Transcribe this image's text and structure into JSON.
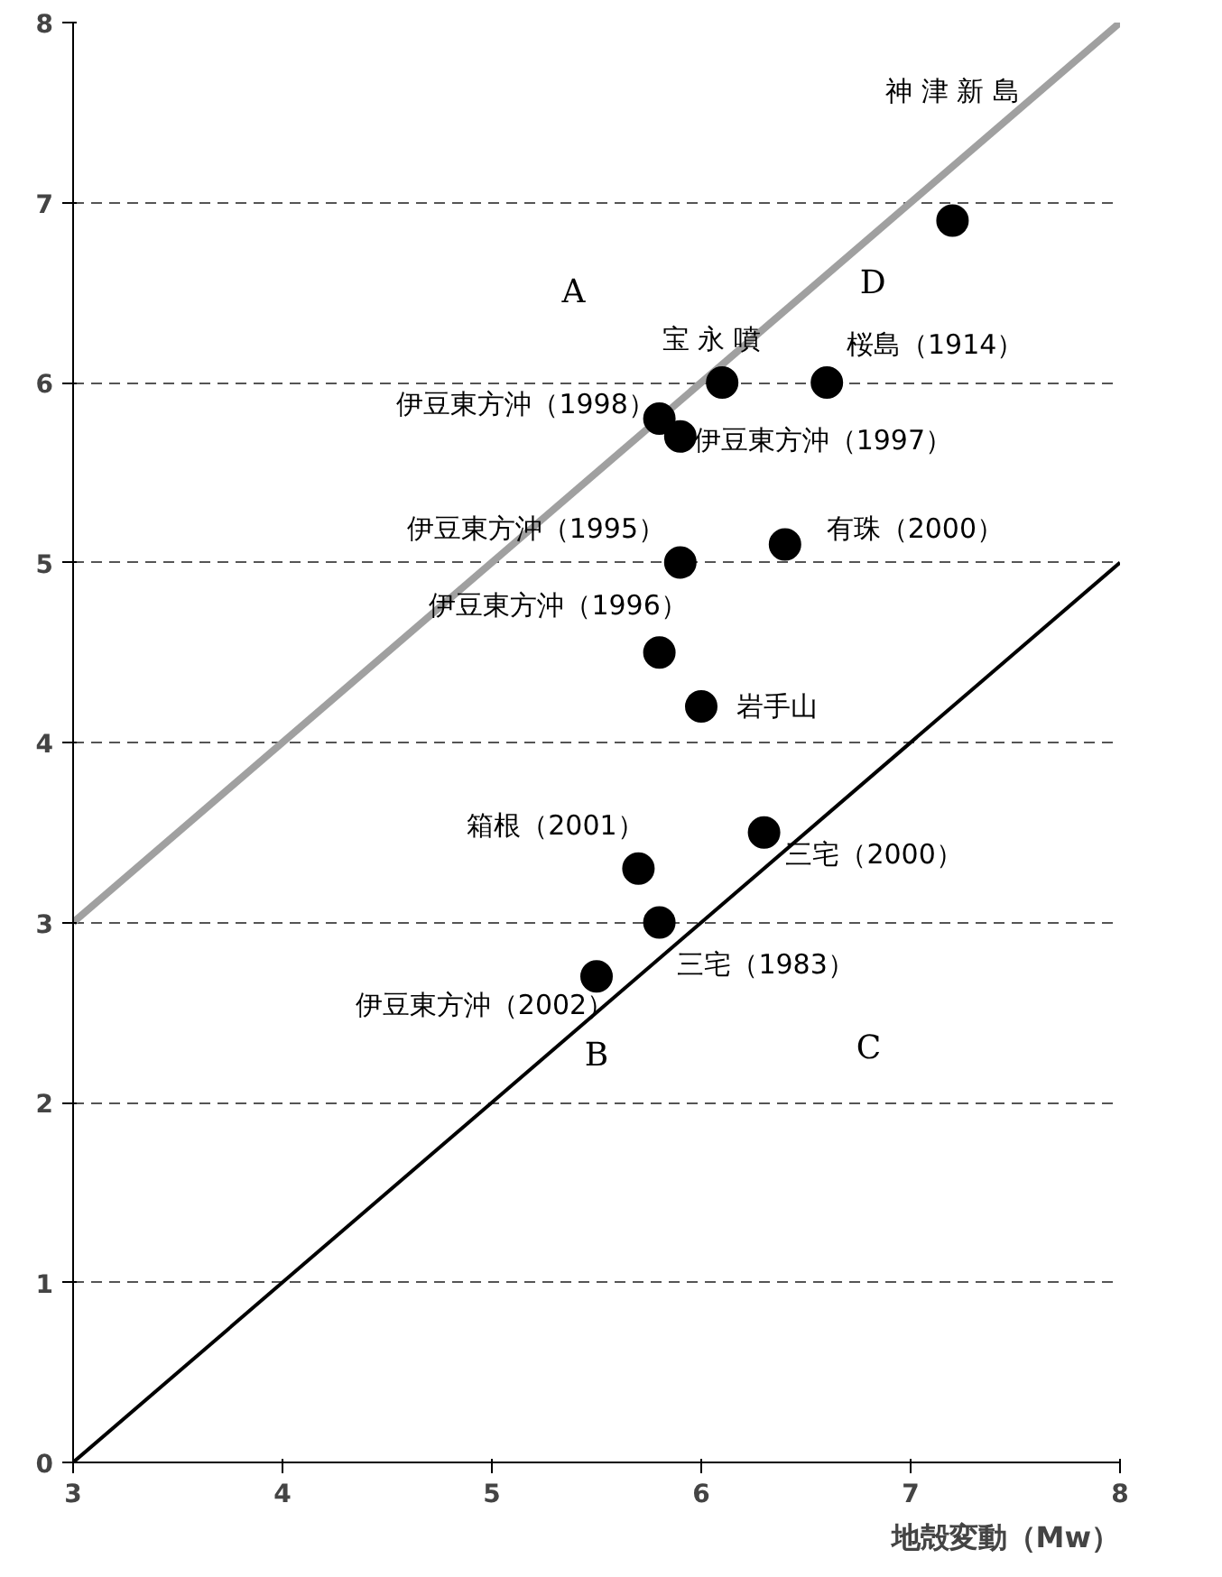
{
  "chart_data": {
    "type": "scatter",
    "xlabel": "地殻変動（Mw）",
    "xlim": [
      3,
      8
    ],
    "ylim": [
      0,
      8
    ],
    "xticks": [
      3,
      4,
      5,
      6,
      7,
      8
    ],
    "yticks": [
      0,
      1,
      2,
      3,
      4,
      5,
      6,
      7,
      8
    ],
    "grid": "y",
    "marker": "circle",
    "series": [
      {
        "type": "line",
        "color": "#a0a0a0",
        "x": [
          3,
          8
        ],
        "values": [
          3,
          8
        ],
        "marker": "none"
      },
      {
        "type": "line",
        "color": "#000000",
        "x": [
          3,
          8
        ],
        "values": [
          0,
          5
        ],
        "marker": "none"
      },
      {
        "color": "#000000",
        "x": [
          7.2,
          6.6,
          6.1,
          5.8,
          5.9,
          6.4,
          5.9,
          5.8,
          6.0,
          6.3,
          5.7,
          5.8,
          5.5
        ],
        "values": [
          6.9,
          6.0,
          6.0,
          5.8,
          5.7,
          5.1,
          5.0,
          4.5,
          4.2,
          3.5,
          3.3,
          3.0,
          2.7
        ]
      }
    ],
    "annotations": [
      "神 津 新 島",
      {
        "text": "宝 永 噴",
        "x": 6.1,
        "y": 6.0
      },
      {
        "text": "桜島（1914）",
        "x": 6.6,
        "y": 6.0
      },
      {
        "text": "伊豆東方沖（1998）",
        "x": 5.8,
        "y": 5.8
      },
      {
        "text": "伊豆東方沖（1997）",
        "x": 5.9,
        "y": 5.7
      },
      {
        "text": "伊豆東方沖（1995）",
        "x": 5.9,
        "y": 5.0
      },
      {
        "text": "有珠（2000）",
        "x": 6.4,
        "y": 5.1
      },
      {
        "text": "伊豆東方沖（1996）",
        "x": 5.8,
        "y": 4.5
      },
      {
        "text": "岩手山",
        "x": 6.0,
        "y": 4.2
      },
      {
        "text": "箱根（2001）",
        "x": 5.7,
        "y": 3.3
      },
      {
        "text": "三宅（2000）",
        "x": 6.3,
        "y": 3.5
      },
      {
        "text": "三宅（1983）",
        "x": 5.8,
        "y": 3.0
      },
      {
        "text": "伊豆東方沖（2002）",
        "x": 5.5,
        "y": 2.7
      },
      "A",
      "D",
      "B",
      "C"
    ]
  }
}
